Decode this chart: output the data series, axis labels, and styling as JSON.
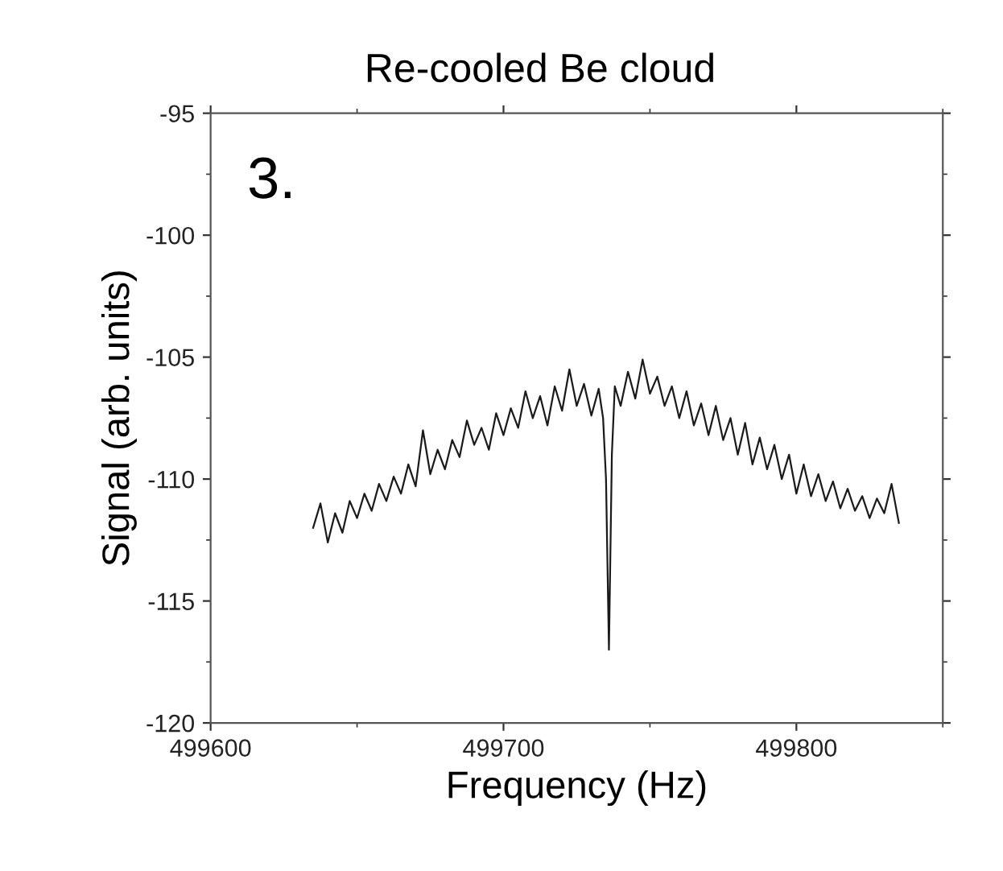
{
  "chart_data": {
    "type": "line",
    "title": "Re-cooled Be cloud",
    "xlabel": "Frequency (Hz)",
    "ylabel": "Signal (arb. units)",
    "annotations": [
      "3."
    ],
    "xlim": [
      499600,
      499850
    ],
    "xticks": [
      499600,
      499700,
      499800
    ],
    "ylim": [
      -120,
      -95
    ],
    "yticks": [
      -120,
      -115,
      -110,
      -105,
      -100,
      -95
    ],
    "grid": false,
    "marker": "none",
    "line_style": "solid",
    "series": [
      {
        "color": "#1a1a1a",
        "x": [
          499635,
          499637.5,
          499640,
          499642.5,
          499645,
          499647.5,
          499650,
          499652.5,
          499655,
          499657.5,
          499660,
          499662.5,
          499665,
          499667.5,
          499670,
          499672.5,
          499675,
          499677.5,
          499680,
          499682.5,
          499685,
          499687.5,
          499690,
          499692.5,
          499695,
          499697.5,
          499700,
          499702.5,
          499705,
          499707.5,
          499710,
          499712.5,
          499715,
          499717.5,
          499720,
          499722.5,
          499725,
          499727.5,
          499730,
          499732.5,
          499734,
          499735,
          499736,
          499737,
          499738,
          499740,
          499742.5,
          499745,
          499747.5,
          499750,
          499752.5,
          499755,
          499757.5,
          499760,
          499762.5,
          499765,
          499767.5,
          499770,
          499772.5,
          499775,
          499777.5,
          499780,
          499782.5,
          499785,
          499787.5,
          499790,
          499792.5,
          499795,
          499797.5,
          499800,
          499802.5,
          499805,
          499807.5,
          499810,
          499812.5,
          499815,
          499817.5,
          499820,
          499822.5,
          499825,
          499827.5,
          499830,
          499832.5,
          499835
        ],
        "values": [
          -112.0,
          -111.0,
          -112.6,
          -111.4,
          -112.2,
          -110.9,
          -111.6,
          -110.6,
          -111.3,
          -110.2,
          -110.9,
          -109.9,
          -110.6,
          -109.4,
          -110.3,
          -108.0,
          -109.8,
          -108.8,
          -109.6,
          -108.4,
          -109.1,
          -107.6,
          -108.6,
          -107.9,
          -108.8,
          -107.3,
          -108.2,
          -107.1,
          -107.9,
          -106.4,
          -107.5,
          -106.6,
          -107.8,
          -106.2,
          -107.2,
          -105.5,
          -107.0,
          -106.1,
          -107.4,
          -106.3,
          -107.5,
          -110.0,
          -117.0,
          -109.0,
          -106.2,
          -107.0,
          -105.6,
          -106.7,
          -105.1,
          -106.5,
          -105.8,
          -107.0,
          -106.2,
          -107.5,
          -106.4,
          -107.8,
          -106.9,
          -108.2,
          -107.0,
          -108.4,
          -107.5,
          -109.0,
          -107.7,
          -109.4,
          -108.3,
          -109.6,
          -108.6,
          -110.0,
          -109.0,
          -110.6,
          -109.4,
          -110.7,
          -109.8,
          -110.9,
          -110.1,
          -111.2,
          -110.4,
          -111.3,
          -110.7,
          -111.6,
          -110.8,
          -111.4,
          -110.2,
          -111.8
        ]
      }
    ]
  }
}
